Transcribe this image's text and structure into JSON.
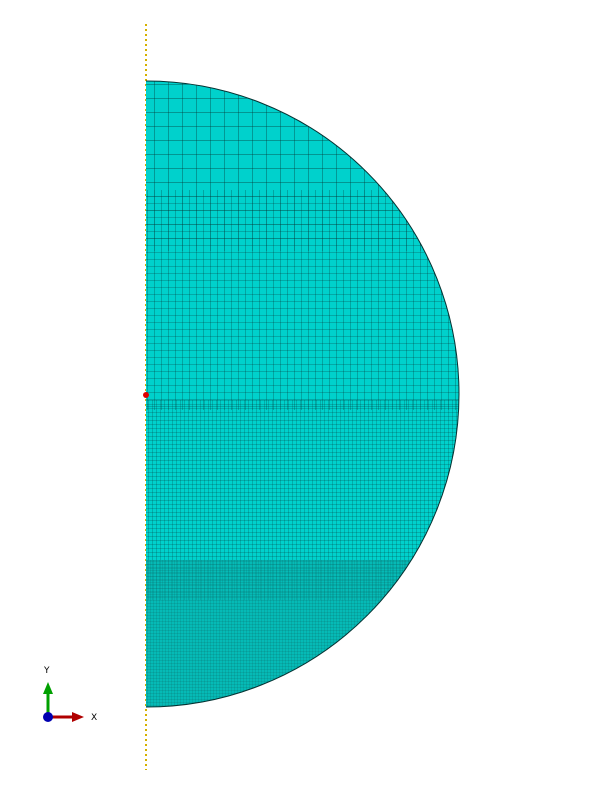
{
  "viewport": {
    "colors": {
      "background": "#ffffff",
      "mesh_fill": "#00d1cc",
      "mesh_fill_dense": "#0aa8a4",
      "mesh_line": "#053232",
      "symmetry_axis": "#d4b000",
      "reference_point": "#e00000"
    }
  },
  "triad": {
    "x_label": "X",
    "y_label": "Y",
    "colors": {
      "x_axis": "#b00000",
      "y_axis": "#00a000",
      "origin": "#0000b0"
    }
  }
}
